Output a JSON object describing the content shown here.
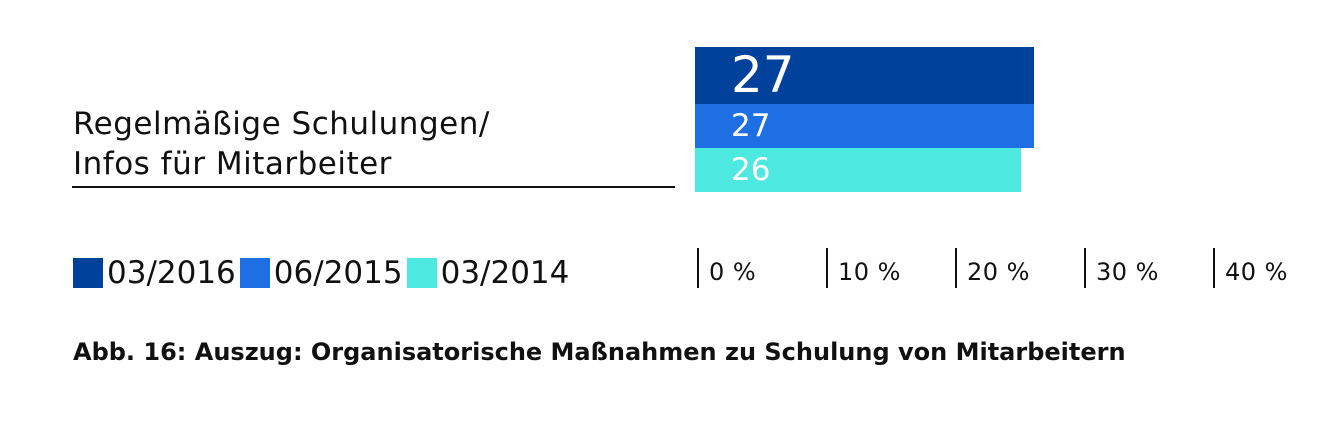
{
  "chart_data": {
    "type": "bar",
    "orientation": "horizontal",
    "categories": [
      "Regelmäßige Schulungen/ Infos für Mitarbeiter"
    ],
    "category_lines": [
      "Regelmäßige Schulungen/",
      "Infos für Mitarbeiter"
    ],
    "series": [
      {
        "name": "03/2016",
        "color": "#00419B",
        "values": [
          27
        ]
      },
      {
        "name": "06/2015",
        "color": "#1E6FE3",
        "values": [
          27
        ]
      },
      {
        "name": "03/2014",
        "color": "#4DE8E0",
        "values": [
          26
        ]
      }
    ],
    "xticks": [
      "0 %",
      "10 %",
      "20 %",
      "30 %",
      "40 %"
    ],
    "xlim": [
      0,
      40
    ],
    "legend": "bottom-left",
    "caption": "Abb. 16: Auszug: Organisatorische Maßnahmen zu Schulung von Mitarbeitern"
  }
}
